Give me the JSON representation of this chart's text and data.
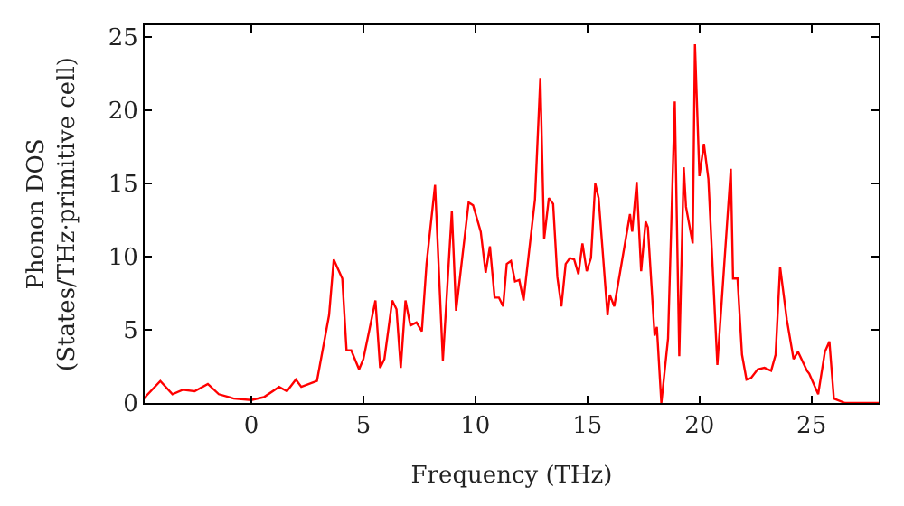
{
  "chart_data": {
    "type": "line",
    "xlabel": "Frequency (THz)",
    "ylabel": "Phonon DOS\n(States/THz·primitive cell)",
    "x": [
      -4.76,
      -4.68,
      -4.06,
      -3.52,
      -3.06,
      -2.53,
      -1.94,
      -1.45,
      -0.78,
      0.0,
      0.56,
      1.24,
      1.59,
      1.99,
      2.23,
      2.93,
      3.47,
      3.68,
      4.06,
      4.25,
      4.46,
      4.81,
      5.0,
      5.54,
      5.75,
      5.94,
      6.29,
      6.48,
      6.67,
      6.88,
      7.1,
      7.37,
      7.61,
      7.82,
      8.2,
      8.55,
      8.95,
      9.14,
      9.7,
      9.9,
      10.24,
      10.46,
      10.65,
      10.86,
      11.05,
      11.24,
      11.4,
      11.59,
      11.77,
      11.96,
      12.15,
      12.66,
      12.9,
      13.07,
      13.28,
      13.47,
      13.66,
      13.84,
      14.03,
      14.22,
      14.41,
      14.6,
      14.78,
      14.97,
      15.16,
      15.35,
      15.5,
      15.9,
      16.0,
      16.2,
      16.9,
      17.0,
      17.2,
      17.4,
      17.6,
      17.7,
      18.0,
      18.1,
      18.3,
      18.6,
      18.9,
      19.1,
      19.3,
      19.4,
      19.7,
      19.8,
      20.0,
      20.2,
      20.4,
      20.8,
      21.4,
      21.5,
      21.7,
      21.9,
      22.1,
      22.3,
      22.6,
      22.9,
      23.2,
      23.4,
      23.6,
      23.9,
      24.2,
      24.4,
      24.8,
      24.9,
      25.3,
      25.6,
      25.8,
      26.0,
      26.5,
      28.0
    ],
    "values": [
      0.3,
      0.5,
      1.5,
      0.6,
      0.9,
      0.8,
      1.3,
      0.6,
      0.3,
      0.2,
      0.4,
      1.1,
      0.8,
      1.6,
      1.1,
      1.5,
      6.0,
      9.8,
      8.5,
      3.6,
      3.6,
      2.3,
      3.0,
      7.0,
      2.4,
      3.0,
      7.0,
      6.4,
      2.4,
      7.0,
      5.3,
      5.5,
      4.9,
      9.5,
      14.9,
      2.9,
      13.1,
      6.3,
      13.7,
      13.5,
      11.7,
      8.9,
      10.7,
      7.2,
      7.2,
      6.6,
      9.5,
      9.7,
      8.3,
      8.4,
      7.0,
      13.9,
      22.2,
      11.2,
      14.0,
      13.6,
      8.6,
      6.6,
      9.5,
      9.9,
      9.8,
      8.8,
      10.9,
      9.0,
      9.9,
      15.0,
      14.0,
      6.0,
      7.4,
      6.6,
      12.9,
      11.7,
      15.1,
      9.0,
      12.4,
      12.0,
      4.6,
      5.2,
      0.0,
      4.4,
      20.6,
      3.2,
      16.1,
      13.4,
      10.9,
      24.5,
      15.5,
      17.7,
      15.3,
      2.6,
      16.0,
      8.5,
      8.5,
      3.3,
      1.6,
      1.7,
      2.3,
      2.4,
      2.2,
      3.3,
      9.3,
      5.7,
      3.0,
      3.5,
      2.2,
      2.0,
      0.6,
      3.5,
      4.2,
      0.3,
      0.0,
      0.0
    ],
    "color": "#ff0000",
    "xlim": [
      -4.76,
      28.0
    ],
    "ylim": [
      0,
      25.8
    ],
    "xticks": [
      0,
      5,
      10,
      15,
      20,
      25
    ],
    "yticks": [
      0,
      5,
      10,
      15,
      20,
      25
    ],
    "legend": false,
    "marker": "none",
    "line_style": "solid"
  }
}
